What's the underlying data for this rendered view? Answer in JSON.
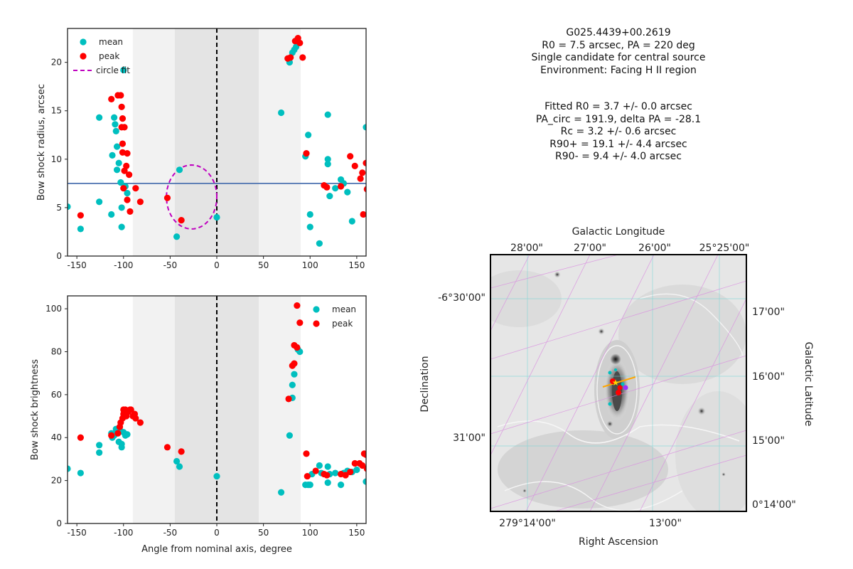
{
  "colors": {
    "mean": "#00BFBF",
    "peak": "#FF0000",
    "circle_fit": "#BF00BF",
    "hline": "#4C72B0"
  },
  "chart_data": [
    {
      "type": "scatter",
      "ylabel": "Bow shock radius, arcsec",
      "xlim": [
        -160,
        160
      ],
      "ylim": [
        0,
        23.5
      ],
      "xticks": [
        -150,
        -100,
        -50,
        0,
        50,
        100,
        150
      ],
      "yticks": [
        0,
        5,
        10,
        15,
        20
      ],
      "bands": [
        {
          "x": [
            -90,
            90
          ],
          "shade": "light"
        },
        {
          "x": [
            -45,
            45
          ],
          "shade": "dark"
        }
      ],
      "vline_x": 0,
      "hline_y": 7.5,
      "legend": {
        "position": "top-left",
        "entries": [
          "mean",
          "peak",
          "circle fit"
        ]
      },
      "circle_fit": {
        "center": [
          -27,
          6.1
        ],
        "radius": 3.3
      },
      "series": [
        {
          "name": "mean",
          "points": [
            [
              -160,
              5.1
            ],
            [
              -146,
              2.8
            ],
            [
              -126,
              14.3
            ],
            [
              -126,
              5.6
            ],
            [
              -113,
              4.3
            ],
            [
              -112,
              10.4
            ],
            [
              -110,
              14.3
            ],
            [
              -109,
              13.6
            ],
            [
              -108,
              12.9
            ],
            [
              -107,
              11.3
            ],
            [
              -107,
              8.9
            ],
            [
              -105,
              9.6
            ],
            [
              -103,
              7.6
            ],
            [
              -102,
              5.0
            ],
            [
              -102,
              3.0
            ],
            [
              -100,
              19.2
            ],
            [
              -98,
              7.2
            ],
            [
              -96,
              6.5
            ],
            [
              -40,
              8.9
            ],
            [
              -43,
              2.0
            ],
            [
              0,
              4.0
            ],
            [
              69,
              14.8
            ],
            [
              78,
              20.0
            ],
            [
              81,
              21.0
            ],
            [
              83,
              21.3
            ],
            [
              85,
              21.6
            ],
            [
              87,
              22.2
            ],
            [
              95,
              10.3
            ],
            [
              98,
              12.5
            ],
            [
              100,
              4.3
            ],
            [
              100,
              3.0
            ],
            [
              110,
              1.3
            ],
            [
              119,
              14.6
            ],
            [
              119,
              10.0
            ],
            [
              119,
              9.5
            ],
            [
              121,
              6.2
            ],
            [
              127,
              7.0
            ],
            [
              133,
              7.9
            ],
            [
              136,
              7.5
            ],
            [
              140,
              6.6
            ],
            [
              145,
              3.6
            ],
            [
              160,
              13.3
            ]
          ]
        },
        {
          "name": "peak",
          "points": [
            [
              -146,
              4.2
            ],
            [
              -113,
              16.2
            ],
            [
              -106,
              16.6
            ],
            [
              -103,
              16.6
            ],
            [
              -102,
              15.4
            ],
            [
              -101,
              14.2
            ],
            [
              -102,
              13.3
            ],
            [
              -99,
              13.3
            ],
            [
              -101,
              11.6
            ],
            [
              -101,
              10.7
            ],
            [
              -96,
              10.6
            ],
            [
              -97,
              9.3
            ],
            [
              -99,
              8.8
            ],
            [
              -94,
              8.4
            ],
            [
              -100,
              7.0
            ],
            [
              -96,
              5.8
            ],
            [
              -87,
              7.0
            ],
            [
              -82,
              5.6
            ],
            [
              -93,
              4.6
            ],
            [
              -53,
              6.0
            ],
            [
              -38,
              3.7
            ],
            [
              76,
              20.4
            ],
            [
              79,
              20.5
            ],
            [
              84,
              22.2
            ],
            [
              87,
              22.5
            ],
            [
              89,
              22.0
            ],
            [
              92,
              20.5
            ],
            [
              96,
              10.6
            ],
            [
              115,
              7.3
            ],
            [
              118,
              7.1
            ],
            [
              133,
              7.2
            ],
            [
              143,
              10.3
            ],
            [
              148,
              9.3
            ],
            [
              154,
              8.0
            ],
            [
              156,
              8.6
            ],
            [
              160,
              9.6
            ],
            [
              157,
              4.3
            ],
            [
              161,
              6.9
            ]
          ]
        }
      ]
    },
    {
      "type": "scatter",
      "xlabel": "Angle from nominal axis, degree",
      "ylabel": "Bow shock brightness",
      "xlim": [
        -160,
        160
      ],
      "ylim": [
        0,
        106
      ],
      "xticks": [
        -150,
        -100,
        -50,
        0,
        50,
        100,
        150
      ],
      "yticks": [
        0,
        20,
        40,
        60,
        80,
        100
      ],
      "bands": [
        {
          "x": [
            -90,
            90
          ],
          "shade": "light"
        },
        {
          "x": [
            -45,
            45
          ],
          "shade": "dark"
        }
      ],
      "vline_x": 0,
      "legend": {
        "position": "top-right",
        "entries": [
          "mean",
          "peak"
        ]
      },
      "series": [
        {
          "name": "mean",
          "points": [
            [
              -160,
              25.5
            ],
            [
              -146,
              23.5
            ],
            [
              -126,
              36.5
            ],
            [
              -126,
              33
            ],
            [
              -113,
              42
            ],
            [
              -112,
              40
            ],
            [
              -110,
              41
            ],
            [
              -109,
              42
            ],
            [
              -108,
              44
            ],
            [
              -107,
              42
            ],
            [
              -105,
              38
            ],
            [
              -103,
              43
            ],
            [
              -102,
              37
            ],
            [
              -102,
              35.5
            ],
            [
              -100,
              42.5
            ],
            [
              -98,
              41
            ],
            [
              -96,
              41.5
            ],
            [
              -43,
              29
            ],
            [
              -40,
              26.5
            ],
            [
              0,
              22
            ],
            [
              69,
              14.5
            ],
            [
              78,
              41
            ],
            [
              81,
              58.5
            ],
            [
              81,
              64.5
            ],
            [
              83,
              69.5
            ],
            [
              87,
              81
            ],
            [
              89,
              80
            ],
            [
              95,
              18
            ],
            [
              98,
              18
            ],
            [
              100,
              18
            ],
            [
              102,
              23
            ],
            [
              110,
              27
            ],
            [
              112,
              23.5
            ],
            [
              119,
              26.5
            ],
            [
              119,
              19
            ],
            [
              121,
              23
            ],
            [
              127,
              23.5
            ],
            [
              133,
              18
            ],
            [
              136,
              23.5
            ],
            [
              140,
              24.5
            ],
            [
              145,
              24
            ],
            [
              150,
              25
            ],
            [
              160,
              19.5
            ]
          ]
        },
        {
          "name": "peak",
          "points": [
            [
              -146,
              40
            ],
            [
              -113,
              41
            ],
            [
              -106,
              42
            ],
            [
              -104,
              45
            ],
            [
              -103,
              47
            ],
            [
              -101,
              49
            ],
            [
              -100,
              51
            ],
            [
              -100,
              53
            ],
            [
              -98,
              53
            ],
            [
              -97,
              50
            ],
            [
              -95,
              52
            ],
            [
              -93,
              53
            ],
            [
              -92,
              53
            ],
            [
              -90,
              50
            ],
            [
              -88,
              51
            ],
            [
              -87,
              49
            ],
            [
              -82,
              47
            ],
            [
              -53,
              35.5
            ],
            [
              -38,
              33.5
            ],
            [
              77,
              58
            ],
            [
              81,
              73.5
            ],
            [
              83,
              74.5
            ],
            [
              83,
              83
            ],
            [
              86,
              82
            ],
            [
              86,
              101.5
            ],
            [
              89,
              93.5
            ],
            [
              96,
              32.5
            ],
            [
              97,
              22
            ],
            [
              106,
              24.5
            ],
            [
              115,
              23
            ],
            [
              118,
              22.5
            ],
            [
              133,
              23
            ],
            [
              138,
              22.5
            ],
            [
              143,
              24
            ],
            [
              148,
              28
            ],
            [
              153,
              28
            ],
            [
              156,
              27
            ],
            [
              158,
              32.5
            ],
            [
              160,
              32
            ],
            [
              161,
              25.5
            ]
          ]
        }
      ]
    },
    {
      "type": "heatmap",
      "xlabel": "Right Ascension",
      "ylabel": "Declination",
      "top_label": "Galactic Longitude",
      "right_label": "Galactic Latitude",
      "top_ticks": [
        "28'00\"",
        "27'00\"",
        "26'00\"",
        "25°25'00\""
      ],
      "bottom_ticks": [
        "279°14'00\"",
        "13'00\""
      ],
      "left_ticks": [
        "-6°30'00\"",
        "31'00\""
      ],
      "right_ticks": [
        "17'00\"",
        "16'00\"",
        "15'00\"",
        "0°14'00\""
      ]
    }
  ],
  "info": {
    "block1": [
      "G025.4439+00.2619",
      "R0 = 7.5 arcsec, PA = 220 deg",
      "Single candidate for central source",
      "Environment: Facing H II region"
    ],
    "block2": [
      "Fitted R0 = 3.7 +/- 0.0 arcsec",
      "PA_circ = 191.9, delta PA = -28.1",
      "Rc = 3.2 +/- 0.6 arcsec",
      "R90+ = 19.1 +/- 4.4 arcsec",
      "R90- = 9.4 +/- 4.0 arcsec"
    ]
  }
}
